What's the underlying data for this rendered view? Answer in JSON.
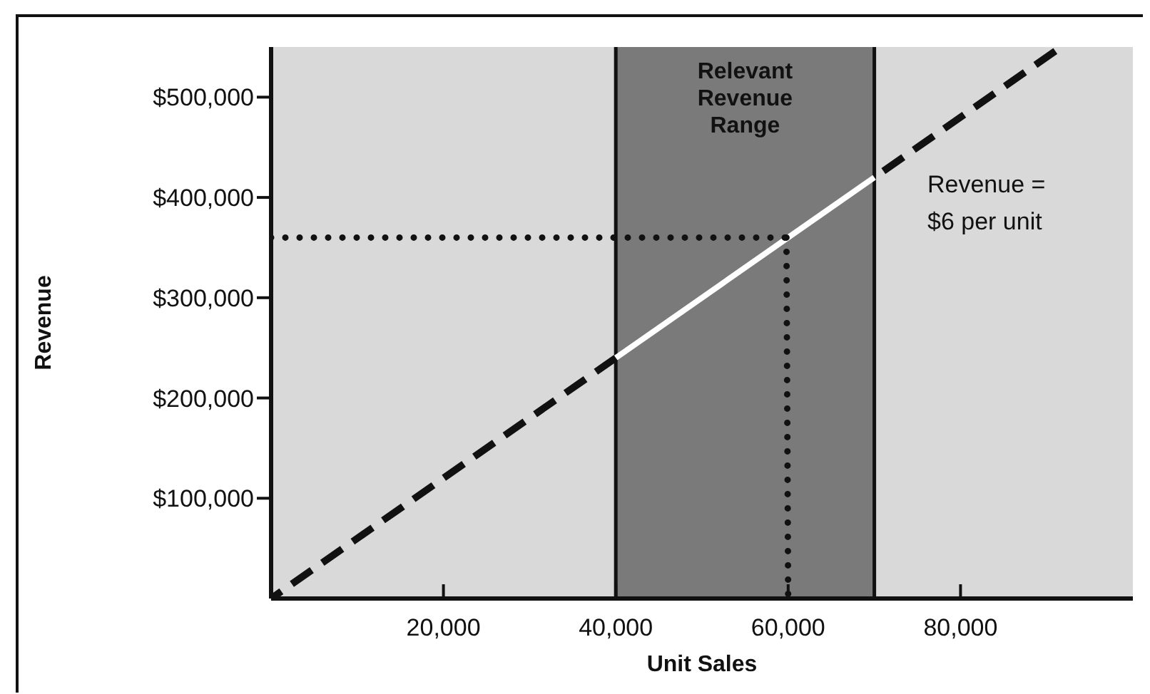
{
  "chart_data": {
    "type": "line",
    "xlabel": "Unit Sales",
    "ylabel": "Revenue",
    "xlim": [
      0,
      100000
    ],
    "ylim": [
      0,
      550000
    ],
    "xticks": [
      {
        "value": 20000,
        "label": "20,000"
      },
      {
        "value": 40000,
        "label": "40,000"
      },
      {
        "value": 60000,
        "label": "60,000"
      },
      {
        "value": 80000,
        "label": "80,000"
      }
    ],
    "yticks": [
      {
        "value": 100000,
        "label": "$100,000"
      },
      {
        "value": 200000,
        "label": "$200,000"
      },
      {
        "value": 300000,
        "label": "$300,000"
      },
      {
        "value": 400000,
        "label": "$400,000"
      },
      {
        "value": 500000,
        "label": "$500,000"
      }
    ],
    "series": [
      {
        "type": "line",
        "color": "#111111",
        "line_style": "dashed",
        "x": [
          0,
          40000
        ],
        "values": [
          0,
          240000
        ]
      },
      {
        "type": "line",
        "color": "#ffffff",
        "line_style": "solid",
        "x": [
          40000,
          70000
        ],
        "values": [
          240000,
          420000
        ]
      },
      {
        "type": "line",
        "color": "#111111",
        "line_style": "dashed",
        "x": [
          70000,
          91000
        ],
        "values": [
          420000,
          546000
        ]
      },
      {
        "type": "line",
        "color": "#111111",
        "line_style": "dotted",
        "x": [
          0,
          59800
        ],
        "values": [
          360000,
          360000
        ]
      },
      {
        "type": "line",
        "color": "#111111",
        "line_style": "dotted",
        "x": [
          59800,
          60000
        ],
        "values": [
          360000,
          0
        ]
      }
    ],
    "bands": [
      {
        "axis": "x",
        "from": 40000,
        "to": 70000,
        "label": "Relevant Revenue Range",
        "color": "#7a7a7a"
      }
    ],
    "ref_lines": [
      {
        "axis": "x",
        "value": 40000,
        "color": "#111111",
        "line_style": "solid"
      },
      {
        "axis": "x",
        "value": 70000,
        "color": "#111111",
        "line_style": "solid"
      }
    ],
    "annotations": [
      "Revenue = $6 per unit"
    ],
    "grid": false
  }
}
